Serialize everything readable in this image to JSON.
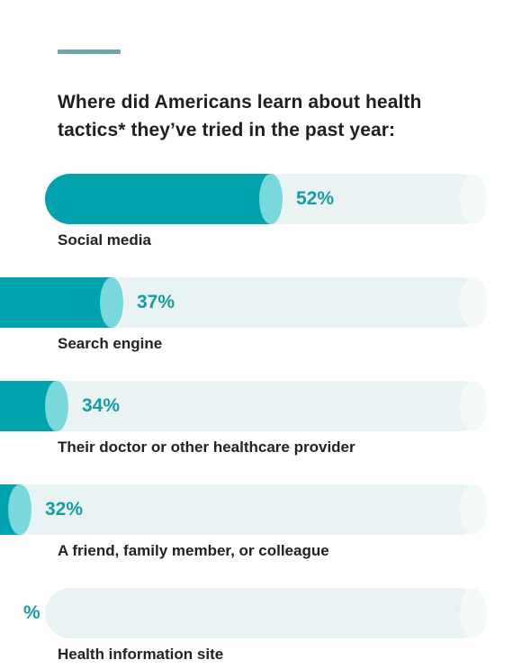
{
  "header": {
    "title": "Where did Americans learn about health tactics* they’ve tried in the past year:"
  },
  "colors": {
    "accent": "#6fa6ab",
    "fill": "#00a2ad",
    "fill_cap": "#79d8dc",
    "track": "#eaf3f3",
    "value_text": "#159da5"
  },
  "chart_data": {
    "type": "bar",
    "orientation": "horizontal",
    "title": "Where did Americans learn about health tactics* they’ve tried in the past year:",
    "xlabel": "",
    "ylabel": "",
    "xlim": [
      0,
      100
    ],
    "categories": [
      "Social media",
      "Search engine",
      "Their doctor or other healthcare provider",
      "A friend, family member, or colleague",
      "Health information site"
    ],
    "values": [
      52,
      37,
      34,
      32,
      null
    ],
    "value_labels": [
      "52%",
      "37%",
      "34%",
      "32%",
      "%"
    ]
  }
}
